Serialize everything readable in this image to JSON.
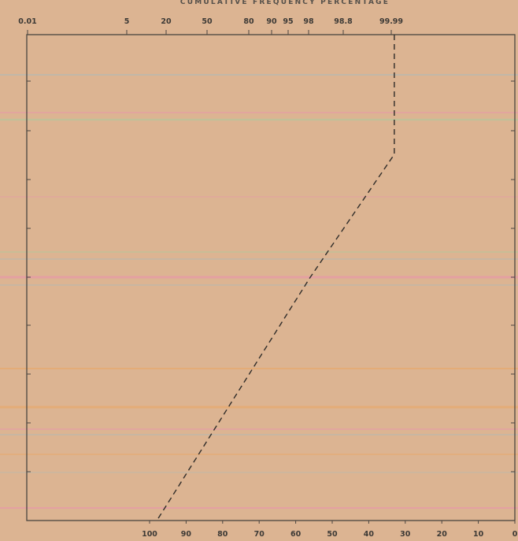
{
  "chart_data": {
    "type": "line",
    "title": "CUMULATIVE FREQUENCY PERCENTAGE",
    "top_axis": {
      "scale": "probability",
      "tick_labels": [
        "0.01",
        "5",
        "20",
        "50",
        "80",
        "90",
        "95",
        "98",
        "98.8",
        "99.99"
      ]
    },
    "bottom_axis": {
      "scale": "linear",
      "tick_labels": [
        "100",
        "90",
        "80",
        "70",
        "60",
        "50",
        "40",
        "30",
        "20",
        "10",
        "0"
      ]
    },
    "left_axis": {
      "tick_labels": []
    },
    "grid": "colored horizontal rules",
    "series": [
      {
        "style": "dashed",
        "color": "#2f2c29",
        "points": [
          {
            "cumulative_frequency": 99.99,
            "bottom_value": 33,
            "level": "top"
          },
          {
            "cumulative_frequency": 99.99,
            "bottom_value": 33,
            "level": "break"
          },
          {
            "cumulative_frequency": 98,
            "bottom_value": 56,
            "level": "middle"
          },
          {
            "cumulative_frequency": 18,
            "bottom_value": 98,
            "level": "bottom"
          }
        ]
      }
    ]
  },
  "colors": {
    "paper": "#dcb492",
    "frame": "#4a4540",
    "rule_blue": "#b8b8b0",
    "rule_pink": "#e79aa8",
    "rule_green": "#b9c49a",
    "rule_orange": "#e7aa6e"
  }
}
